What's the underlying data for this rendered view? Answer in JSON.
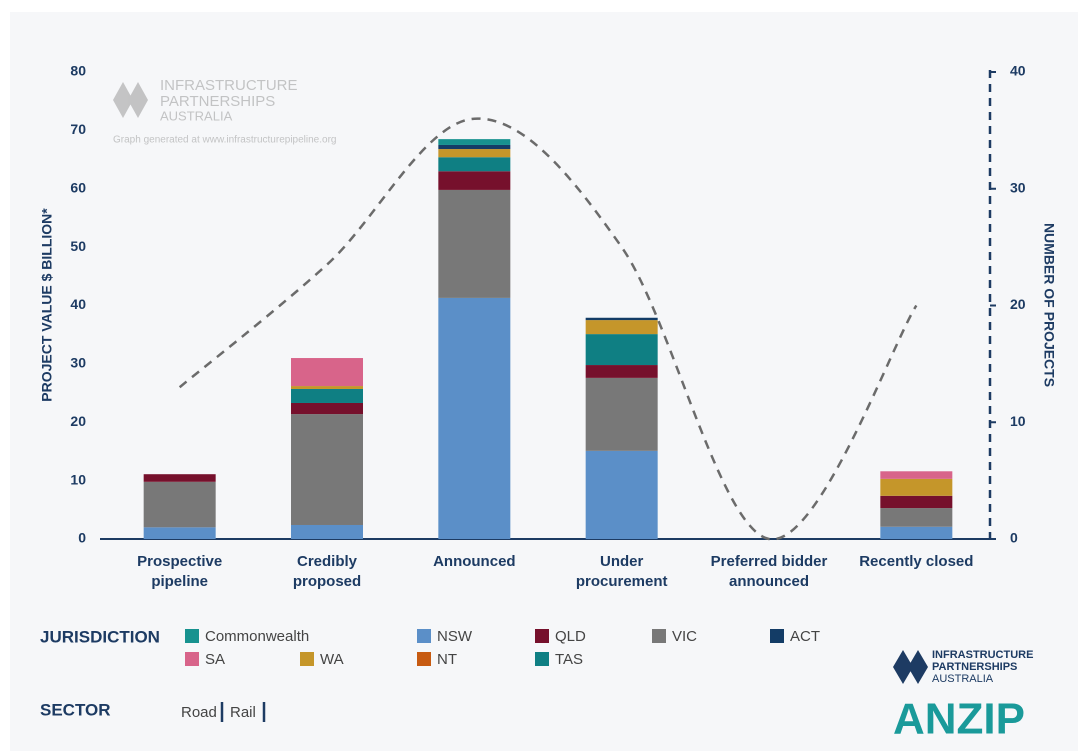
{
  "chart_data": {
    "type": "stacked-bar-line",
    "y_label": "PROJECT VALUE $ BILLION*",
    "y2_label": "NUMBER OF PROJECTS",
    "categories": [
      "Prospective pipeline",
      "Credibly proposed",
      "Announced",
      "Under procurement",
      "Preferred bidder announced",
      "Recently closed"
    ],
    "ylim": [
      0,
      80
    ],
    "yticks": [
      0,
      10,
      20,
      30,
      40,
      50,
      60,
      70,
      80
    ],
    "y2lim": [
      0,
      40
    ],
    "y2ticks": [
      0,
      10,
      20,
      30,
      40
    ],
    "series": [
      {
        "name": "Commonwealth",
        "color": "#17928f",
        "values": [
          0,
          0,
          1.0,
          0,
          0,
          0
        ]
      },
      {
        "name": "NSW",
        "color": "#5b8fc8",
        "values": [
          2.0,
          2.4,
          41.3,
          15.1,
          0,
          2.1
        ]
      },
      {
        "name": "QLD",
        "color": "#76102c",
        "values": [
          1.3,
          1.9,
          3.2,
          2.2,
          0,
          2.1
        ]
      },
      {
        "name": "VIC",
        "color": "#787878",
        "values": [
          7.8,
          19.0,
          18.5,
          12.5,
          0,
          3.2
        ]
      },
      {
        "name": "ACT",
        "color": "#133c66",
        "values": [
          0,
          0,
          0.7,
          0.4,
          0,
          0
        ]
      },
      {
        "name": "SA",
        "color": "#d8648a",
        "values": [
          0,
          4.8,
          0,
          0,
          0,
          1.3
        ]
      },
      {
        "name": "WA",
        "color": "#c5962a",
        "values": [
          0,
          0.5,
          1.4,
          2.4,
          0,
          2.9
        ]
      },
      {
        "name": "NT",
        "color": "#c75b12",
        "values": [
          0,
          0,
          0,
          0,
          0,
          0
        ]
      },
      {
        "name": "TAS",
        "color": "#0f7f83",
        "values": [
          0,
          2.4,
          2.4,
          5.3,
          0,
          0
        ]
      },
      {
        "type": "line",
        "axis": "y2",
        "color": "#6b6b6b",
        "dashed": true,
        "values": [
          13,
          23.5,
          36,
          25,
          0,
          20
        ]
      }
    ],
    "legend_title": "JURISDICTION",
    "sector_title": "SECTOR",
    "sectors": [
      "Road",
      "Rail"
    ],
    "watermark": {
      "line1": "INFRASTRUCTURE",
      "line2": "PARTNERSHIPS",
      "line3": "AUSTRALIA",
      "note": "Graph generated at www.infrastructurepipeline.org"
    },
    "logo": {
      "line1": "INFRASTRUCTURE",
      "line2": "PARTNERSHIPS",
      "line3": "AUSTRALIA",
      "brand": "ANZIP"
    }
  }
}
